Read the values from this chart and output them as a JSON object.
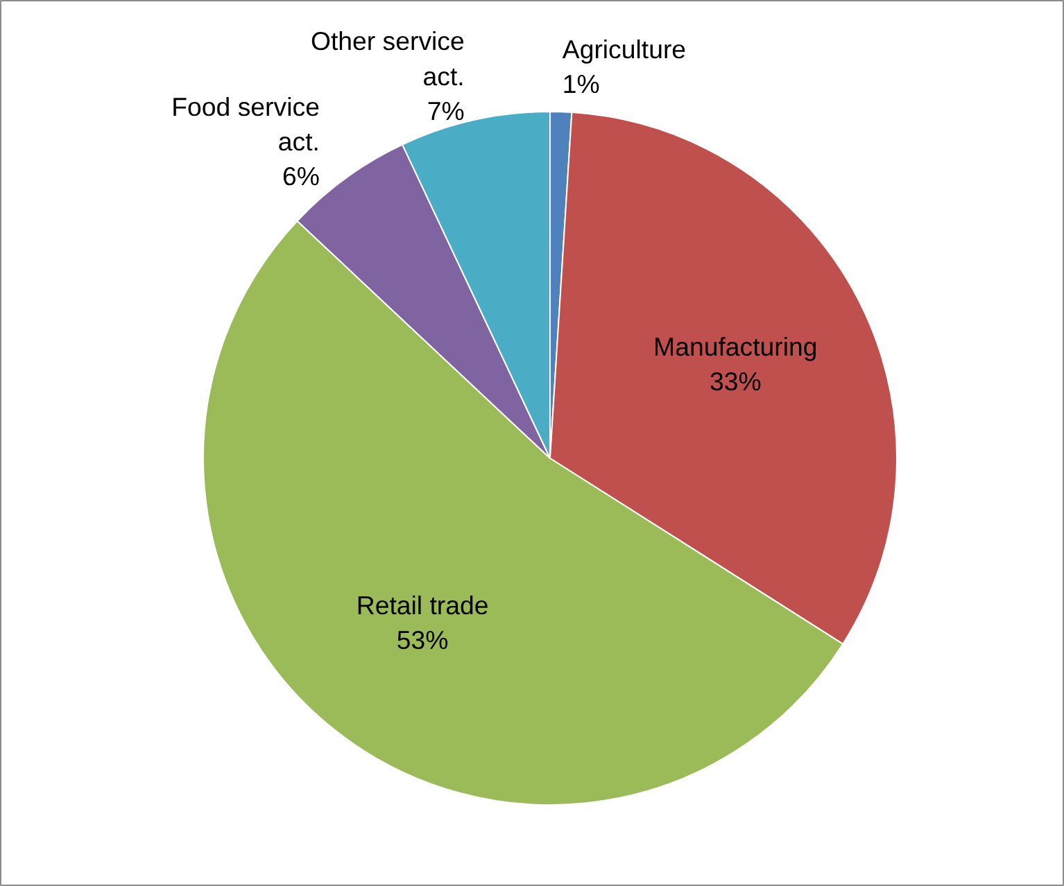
{
  "chart_data": {
    "type": "pie",
    "categories": [
      "Agriculture",
      "Manufacturing",
      "Retail trade",
      "Food service act.",
      "Other service act."
    ],
    "values": [
      1,
      33,
      53,
      6,
      7
    ],
    "value_labels": [
      "1%",
      "33%",
      "53%",
      "6%",
      "7%"
    ],
    "colors": [
      "#4f81bd",
      "#c0504d",
      "#9bbb59",
      "#8064a2",
      "#4bacc6"
    ]
  }
}
